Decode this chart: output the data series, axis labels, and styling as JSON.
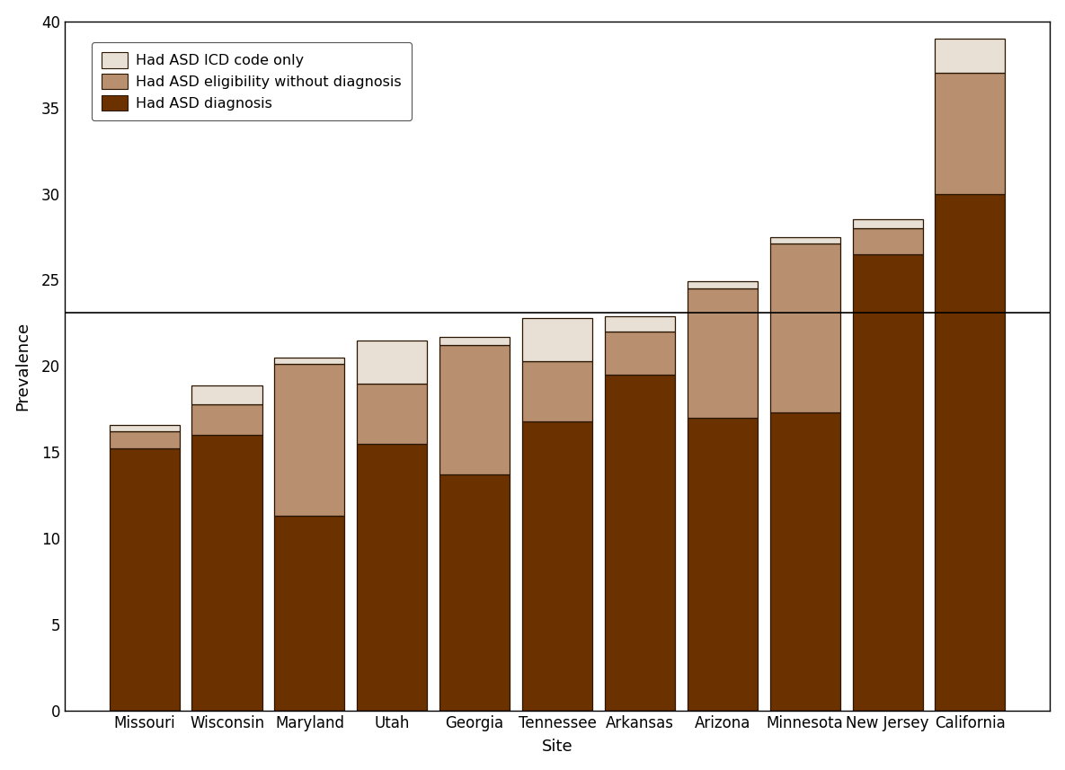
{
  "sites": [
    "Missouri",
    "Wisconsin",
    "Maryland",
    "Utah",
    "Georgia",
    "Tennessee",
    "Arkansas",
    "Arizona",
    "Minnesota",
    "New Jersey",
    "California"
  ],
  "diagnosis": [
    15.2,
    16.0,
    11.3,
    15.5,
    13.7,
    16.8,
    19.5,
    17.0,
    17.3,
    26.5,
    30.0
  ],
  "eligibility": [
    1.0,
    1.8,
    8.8,
    3.5,
    7.5,
    3.5,
    2.5,
    7.5,
    9.8,
    1.5,
    7.0
  ],
  "icd_code": [
    0.4,
    1.1,
    0.4,
    2.5,
    0.5,
    2.5,
    0.9,
    0.4,
    0.4,
    0.5,
    2.0
  ],
  "color_diagnosis": "#6B3200",
  "color_eligibility": "#B89070",
  "color_icd": "#E8E0D5",
  "reference_line": 23.1,
  "ylabel": "Prevalence",
  "xlabel": "Site",
  "ylim": [
    0,
    40
  ],
  "yticks": [
    0,
    5,
    10,
    15,
    20,
    25,
    30,
    35,
    40
  ],
  "legend_labels": [
    "Had ASD ICD code only",
    "Had ASD eligibility without diagnosis",
    "Had ASD diagnosis"
  ],
  "bar_edge_color": "#2a1500",
  "bar_width": 0.85,
  "axis_fontsize": 13,
  "tick_fontsize": 12,
  "legend_fontsize": 11.5
}
